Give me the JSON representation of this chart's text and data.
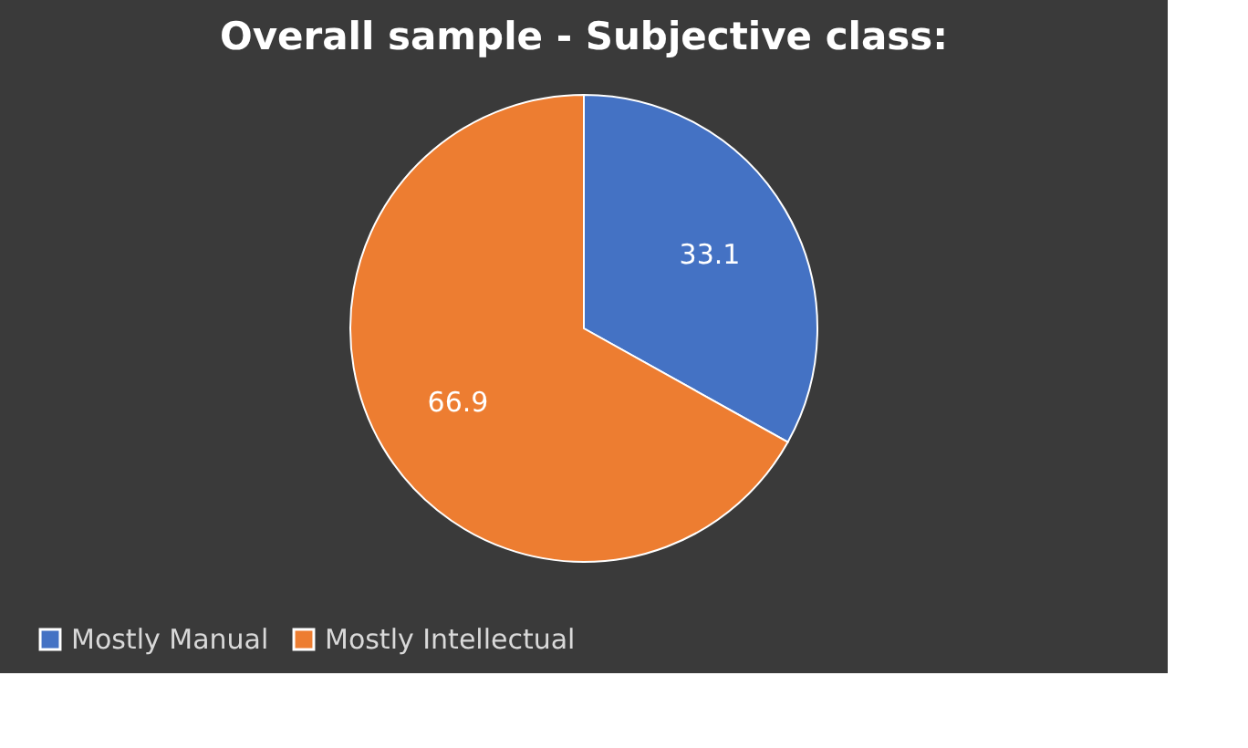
{
  "chart_data": {
    "type": "pie",
    "title": "Overall sample - Subjective class:",
    "categories": [
      "Mostly Manual",
      "Mostly Intellectual"
    ],
    "values": [
      33.1,
      66.9
    ],
    "colors": [
      "#4472c4",
      "#ed7d31"
    ],
    "data_labels": true,
    "legend": "bottom"
  }
}
